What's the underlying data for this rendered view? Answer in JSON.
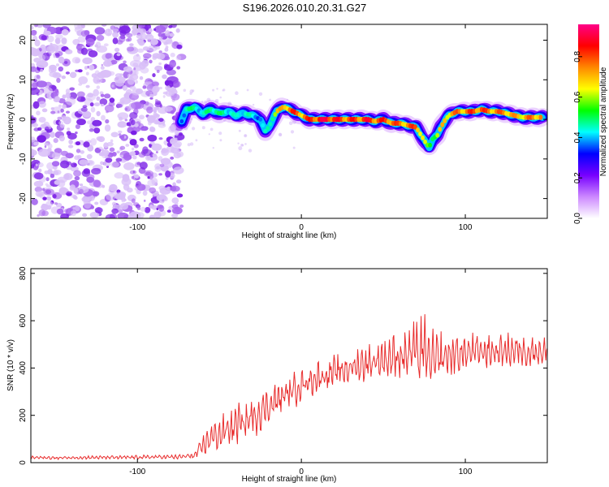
{
  "title": "S196.2026.010.20.31.G27",
  "chart_data": [
    {
      "type": "heatmap",
      "name": "spectrogram",
      "xlabel": "Height of straight line (km)",
      "ylabel": "Frequency (Hz)",
      "xlim": [
        -165,
        150
      ],
      "ylim": [
        -25,
        24
      ],
      "x_ticks": [
        -100,
        0,
        100
      ],
      "y_ticks": [
        -20,
        -10,
        0,
        10,
        20
      ],
      "noise_region_x": [
        -165,
        -73
      ],
      "ridge": {
        "x": [
          -73,
          -70,
          -65,
          -60,
          -55,
          -50,
          -45,
          -40,
          -35,
          -30,
          -25,
          -22,
          -20,
          -17,
          -15,
          -12,
          -10,
          -5,
          0,
          5,
          10,
          15,
          20,
          25,
          30,
          35,
          40,
          45,
          50,
          55,
          60,
          65,
          70,
          73,
          76,
          78,
          80,
          83,
          85,
          88,
          90,
          95,
          100,
          105,
          110,
          115,
          120,
          125,
          130,
          135,
          140,
          147
        ],
        "freq": [
          -0.5,
          2.5,
          3,
          1.5,
          2.5,
          1.5,
          2,
          1,
          1.5,
          1,
          0,
          -3,
          -2,
          0.5,
          2,
          3,
          3,
          2,
          1,
          0,
          0,
          0,
          0,
          0,
          0,
          0,
          0,
          -0.5,
          0,
          -1,
          -1,
          -1.5,
          -2,
          -4,
          -6,
          -7,
          -5,
          -4,
          -2,
          0,
          1,
          2,
          2,
          2,
          2.5,
          2,
          2,
          1.5,
          1,
          0.5,
          0.5,
          0.5
        ],
        "amplitude": [
          0.4,
          0.5,
          0.5,
          0.45,
          0.55,
          0.5,
          0.5,
          0.45,
          0.5,
          0.45,
          0.4,
          0.45,
          0.5,
          0.6,
          0.7,
          0.75,
          0.8,
          0.85,
          0.8,
          0.85,
          0.9,
          0.95,
          0.9,
          0.85,
          0.85,
          0.85,
          0.9,
          0.85,
          0.85,
          0.85,
          0.8,
          0.8,
          0.85,
          0.75,
          0.6,
          0.55,
          0.6,
          0.65,
          0.7,
          0.75,
          0.75,
          0.8,
          0.8,
          0.85,
          0.85,
          0.8,
          0.8,
          0.8,
          0.75,
          0.75,
          0.8,
          0.8
        ]
      },
      "colorbar": {
        "label": "Normalized spectral amplitude",
        "range": [
          0,
          0.96
        ],
        "ticks": [
          "0.0",
          "0.2",
          "0.4",
          "0.6",
          "0.8"
        ],
        "colors": [
          "#ffffff",
          "#cc88ff",
          "#7700ff",
          "#0000ff",
          "#00ffff",
          "#00ff00",
          "#ffff00",
          "#ff8800",
          "#ff0000",
          "#ff0088"
        ]
      }
    },
    {
      "type": "line",
      "name": "snr",
      "xlabel": "Height of straight line (km)",
      "ylabel": "SNR (10 * v/v)",
      "xlim": [
        -165,
        150
      ],
      "ylim": [
        0,
        820
      ],
      "x_ticks": [
        -100,
        0,
        100
      ],
      "y_ticks": [
        0,
        200,
        400,
        600,
        800
      ],
      "series": [
        {
          "name": "SNR",
          "color": "#e82c2c",
          "x": [
            -165,
            -150,
            -130,
            -110,
            -90,
            -75,
            -65,
            -60,
            -55,
            -50,
            -45,
            -40,
            -35,
            -30,
            -25,
            -20,
            -15,
            -10,
            -5,
            0,
            10,
            20,
            30,
            40,
            50,
            60,
            70,
            75,
            80,
            90,
            100,
            110,
            120,
            130,
            140,
            150
          ],
          "y": [
            22,
            20,
            22,
            22,
            24,
            24,
            30,
            70,
            110,
            120,
            140,
            160,
            170,
            190,
            215,
            240,
            265,
            285,
            305,
            330,
            360,
            380,
            400,
            420,
            440,
            450,
            470,
            460,
            430,
            450,
            465,
            470,
            470,
            475,
            470,
            475
          ],
          "fluctuation": [
            8,
            8,
            8,
            8,
            10,
            10,
            20,
            50,
            60,
            80,
            90,
            100,
            100,
            100,
            90,
            90,
            90,
            80,
            80,
            80,
            80,
            80,
            80,
            90,
            100,
            110,
            160,
            220,
            140,
            110,
            90,
            80,
            80,
            80,
            80,
            80
          ]
        }
      ]
    }
  ]
}
